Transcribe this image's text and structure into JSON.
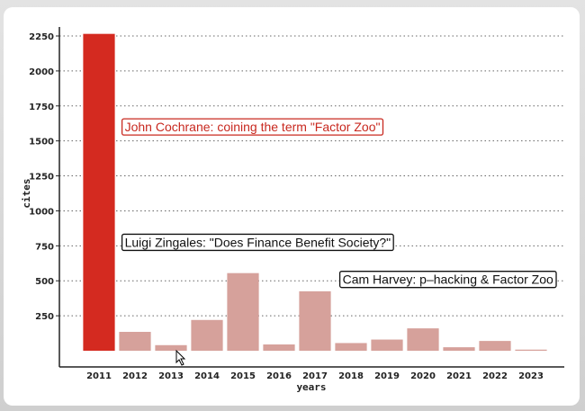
{
  "chart_data": {
    "type": "bar",
    "categories": [
      "2011",
      "2012",
      "2013",
      "2014",
      "2015",
      "2016",
      "2017",
      "2018",
      "2019",
      "2020",
      "2021",
      "2022",
      "2023"
    ],
    "values": [
      2265,
      135,
      40,
      220,
      555,
      45,
      425,
      55,
      80,
      160,
      25,
      70,
      8
    ],
    "xlabel": "years",
    "ylabel": "cites",
    "ylim": [
      0,
      2250
    ],
    "yticks": [
      250,
      500,
      750,
      1000,
      1250,
      1500,
      1750,
      2000,
      2250
    ],
    "grid": "horizontal dotted",
    "colors": {
      "highlight": "#d42a20",
      "bars": "#d6a19b",
      "axis": "#222222",
      "grid": "#666666"
    },
    "highlight_category": "2011",
    "annotations": [
      {
        "text": "John Cochrane: coining the term \"Factor Zoo\"",
        "x": "2011",
        "y": 1600,
        "color": "#c8281f"
      },
      {
        "text": "Luigi Zingales: \"Does Finance Benefit Society?\"",
        "x": "2011",
        "y": 775,
        "color": "#111111"
      },
      {
        "text": "Cam Harvey: p–hacking & Factor Zoo",
        "x": "2017",
        "y": 510,
        "color": "#111111"
      }
    ]
  }
}
